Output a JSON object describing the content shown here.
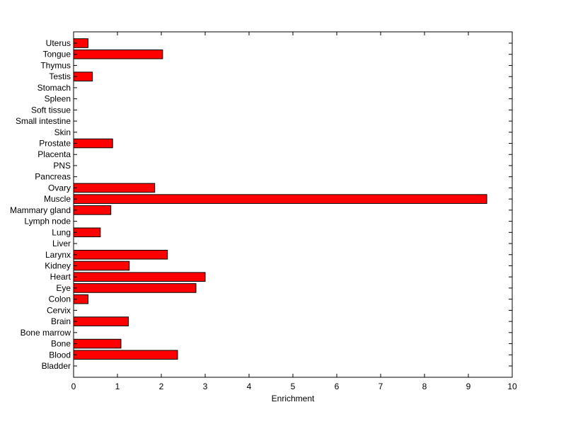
{
  "chart_data": {
    "type": "bar",
    "orientation": "horizontal",
    "title": "",
    "xlabel": "Enrichment",
    "ylabel": "",
    "xlim": [
      0,
      10
    ],
    "xticks": [
      "0",
      "1",
      "2",
      "3",
      "4",
      "5",
      "6",
      "7",
      "8",
      "9",
      "10"
    ],
    "grid": false,
    "bar_color": "#ff0000",
    "edge_color": "#000000",
    "categories": [
      "Uterus",
      "Tongue",
      "Thymus",
      "Testis",
      "Stomach",
      "Spleen",
      "Soft tissue",
      "Small intestine",
      "Skin",
      "Prostate",
      "Placenta",
      "PNS",
      "Pancreas",
      "Ovary",
      "Muscle",
      "Mammary gland",
      "Lymph node",
      "Lung",
      "Liver",
      "Larynx",
      "Kidney",
      "Heart",
      "Eye",
      "Colon",
      "Cervix",
      "Brain",
      "Bone marrow",
      "Bone",
      "Blood",
      "Bladder"
    ],
    "values": [
      0.33,
      2.03,
      0,
      0.43,
      0,
      0,
      0,
      0,
      0,
      0.89,
      0,
      0,
      0,
      1.85,
      9.42,
      0.85,
      0,
      0.61,
      0,
      2.14,
      1.27,
      3.0,
      2.79,
      0.33,
      0,
      1.25,
      0,
      1.08,
      2.37,
      0
    ]
  }
}
